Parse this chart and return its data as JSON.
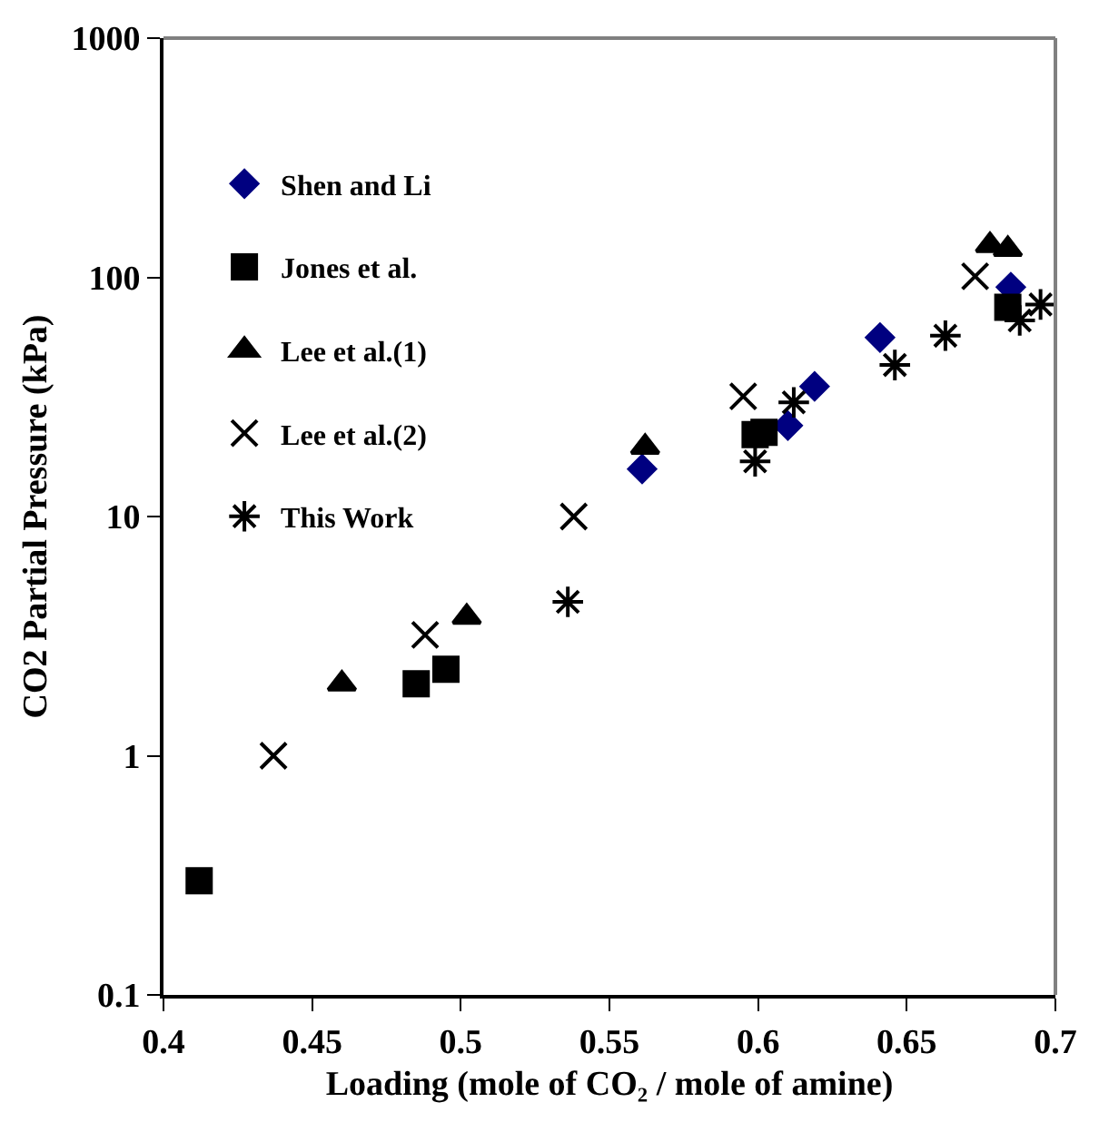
{
  "chart_data": {
    "type": "scatter",
    "xlabel": "Loading (mole of CO₂ / mole of amine)",
    "ylabel": "CO2 Partial Pressure (kPa)",
    "xlim": [
      0.4,
      0.7
    ],
    "xticks": [
      0.4,
      0.45,
      0.5,
      0.55,
      0.6,
      0.65,
      0.7
    ],
    "ylim": [
      0.1,
      1000
    ],
    "yticks": [
      0.1,
      1,
      10,
      100,
      1000
    ],
    "log": true,
    "legend": "top left",
    "series": [
      {
        "name": "Shen and Li",
        "color": "#000080",
        "marker": "diamond",
        "x": [
          0.561,
          0.61,
          0.619,
          0.641,
          0.685
        ],
        "values": [
          15.8,
          24,
          35,
          56,
          91
        ]
      },
      {
        "name": "Jones et al.",
        "color": "#000000",
        "marker": "square",
        "x": [
          0.412,
          0.485,
          0.495,
          0.599,
          0.602,
          0.684
        ],
        "values": [
          0.3,
          2.0,
          2.3,
          22,
          22.5,
          75
        ]
      },
      {
        "name": "Lee et al.(1)",
        "color": "#000000",
        "marker": "triangle",
        "x": [
          0.46,
          0.502,
          0.562,
          0.678,
          0.684
        ],
        "values": [
          2.0,
          3.8,
          19.5,
          136,
          131
        ]
      },
      {
        "name": "Lee et al.(2)",
        "color": "#000000",
        "marker": "cross",
        "x": [
          0.437,
          0.488,
          0.538,
          0.595,
          0.673
        ],
        "values": [
          1.0,
          3.2,
          10,
          31.8,
          101
        ]
      },
      {
        "name": "This Work",
        "color": "#000000",
        "x": [
          0.536,
          0.599,
          0.612,
          0.646,
          0.663,
          0.688,
          0.695
        ],
        "values": [
          4.4,
          17,
          30,
          43,
          57,
          66,
          77
        ]
      }
    ]
  }
}
